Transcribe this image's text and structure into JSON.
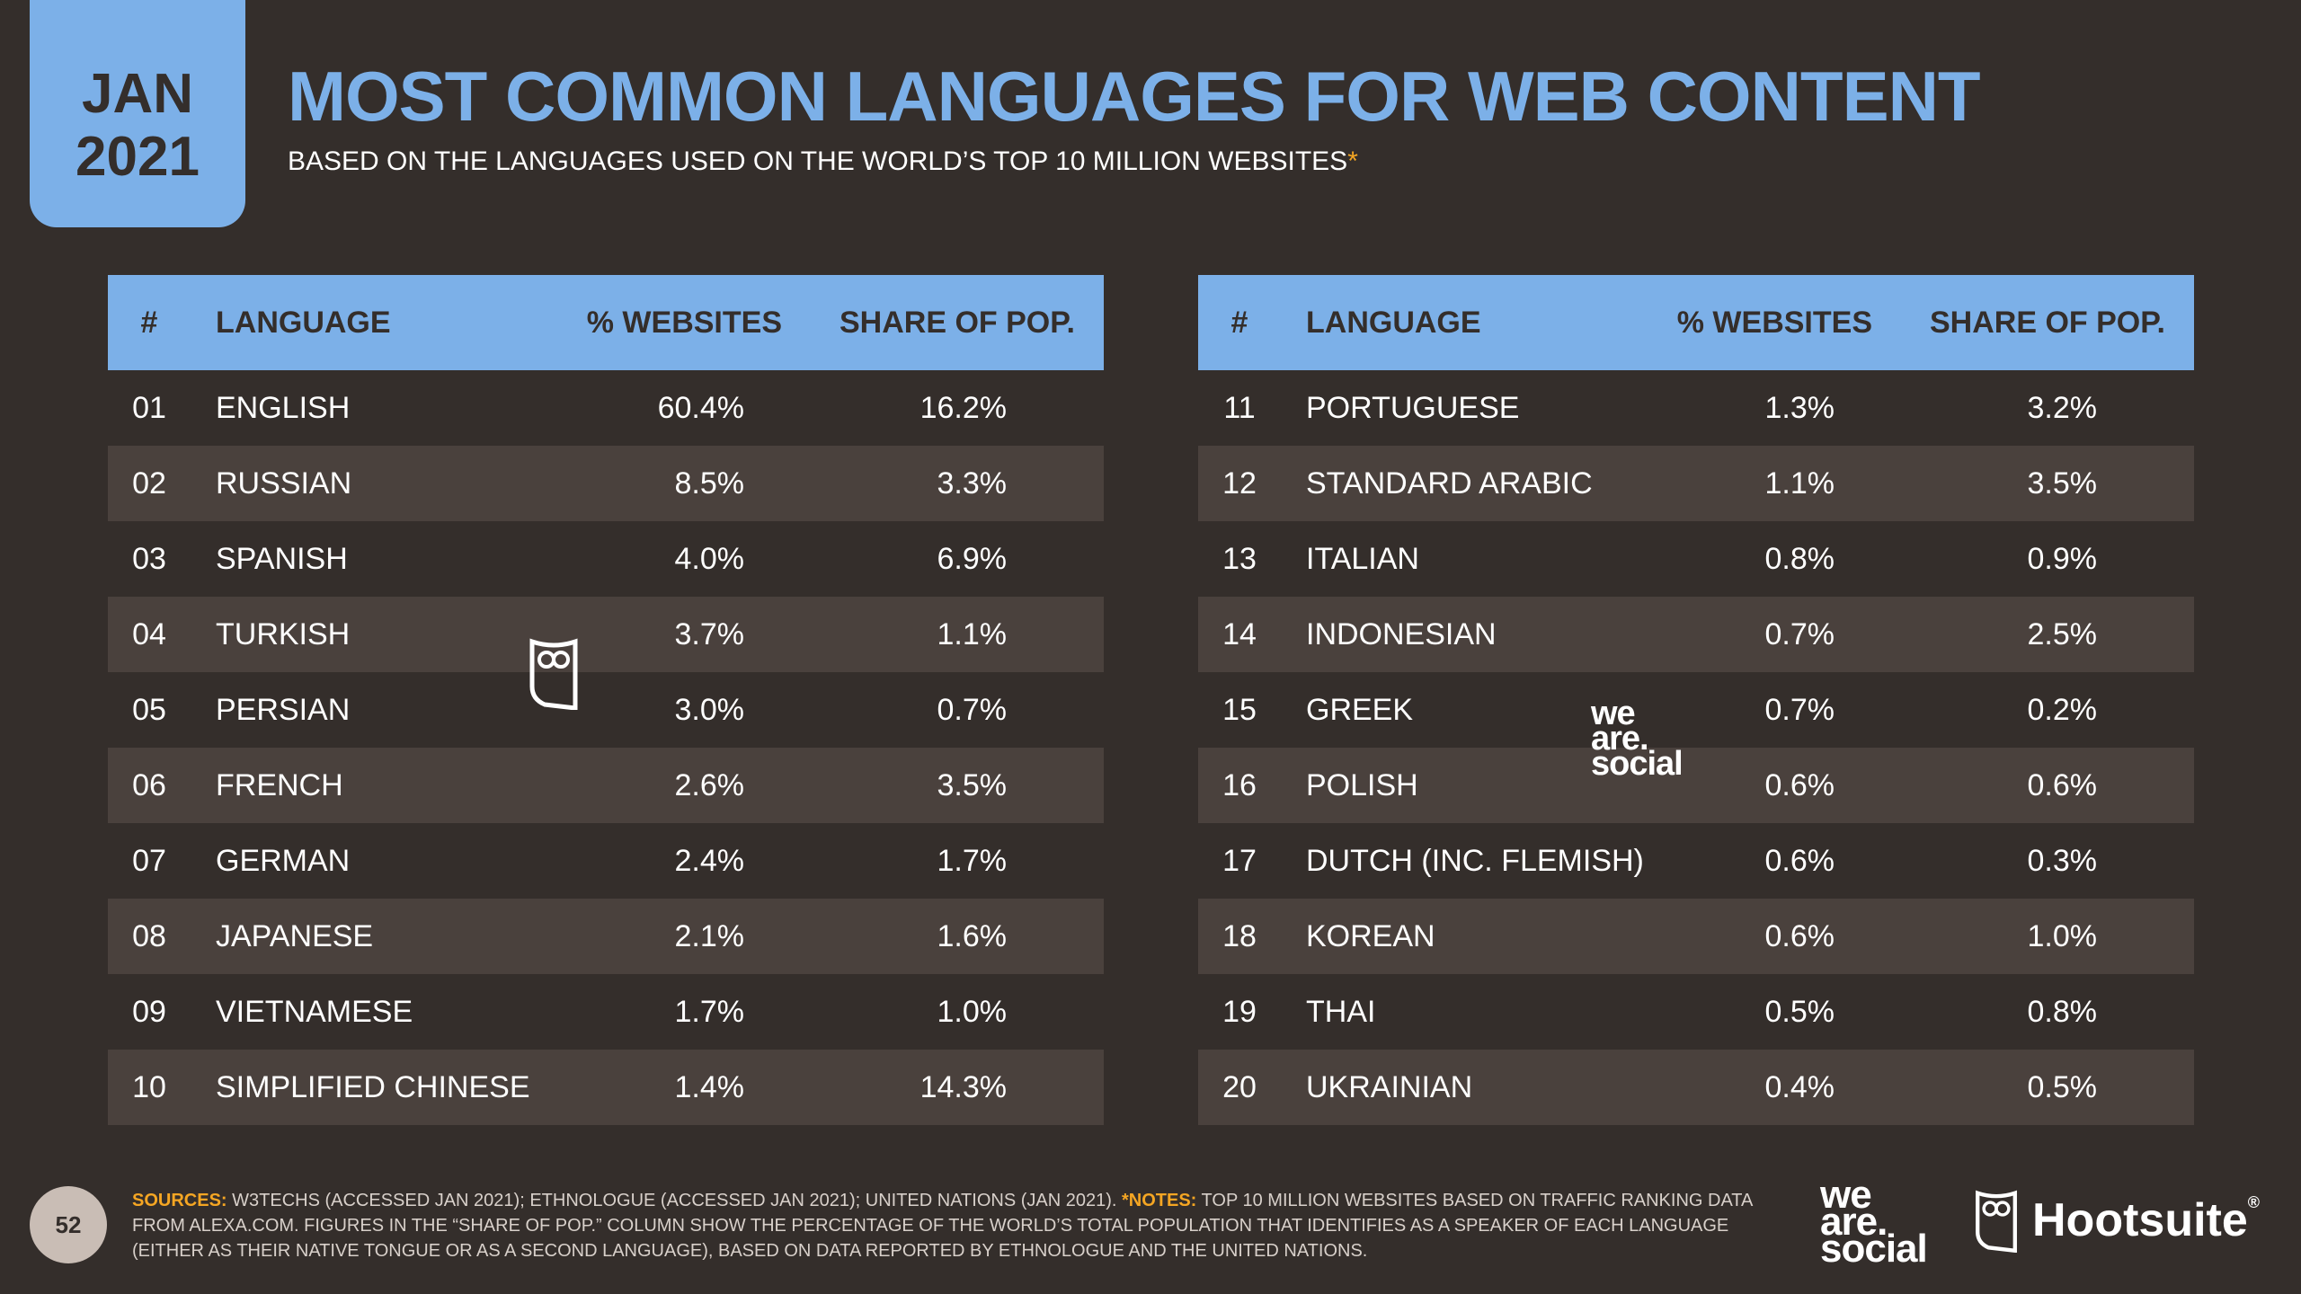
{
  "badge": {
    "month": "JAN",
    "year": "2021"
  },
  "title": "MOST COMMON LANGUAGES FOR WEB CONTENT",
  "subtitle": "BASED ON THE LANGUAGES USED ON THE WORLD’S TOP 10 MILLION WEBSITES",
  "subtitle_star": "*",
  "headers": {
    "num": "#",
    "language": "LANGUAGE",
    "websites": "% WEBSITES",
    "share": "SHARE OF POP."
  },
  "left_rows": [
    {
      "num": "01",
      "language": "ENGLISH",
      "websites": "60.4%",
      "share": "16.2%"
    },
    {
      "num": "02",
      "language": "RUSSIAN",
      "websites": "8.5%",
      "share": "3.3%"
    },
    {
      "num": "03",
      "language": "SPANISH",
      "websites": "4.0%",
      "share": "6.9%"
    },
    {
      "num": "04",
      "language": "TURKISH",
      "websites": "3.7%",
      "share": "1.1%"
    },
    {
      "num": "05",
      "language": "PERSIAN",
      "websites": "3.0%",
      "share": "0.7%"
    },
    {
      "num": "06",
      "language": "FRENCH",
      "websites": "2.6%",
      "share": "3.5%"
    },
    {
      "num": "07",
      "language": "GERMAN",
      "websites": "2.4%",
      "share": "1.7%"
    },
    {
      "num": "08",
      "language": "JAPANESE",
      "websites": "2.1%",
      "share": "1.6%"
    },
    {
      "num": "09",
      "language": "VIETNAMESE",
      "websites": "1.7%",
      "share": "1.0%"
    },
    {
      "num": "10",
      "language": "SIMPLIFIED CHINESE",
      "websites": "1.4%",
      "share": "14.3%"
    }
  ],
  "right_rows": [
    {
      "num": "11",
      "language": "PORTUGUESE",
      "websites": "1.3%",
      "share": "3.2%"
    },
    {
      "num": "12",
      "language": "STANDARD ARABIC",
      "websites": "1.1%",
      "share": "3.5%"
    },
    {
      "num": "13",
      "language": "ITALIAN",
      "websites": "0.8%",
      "share": "0.9%"
    },
    {
      "num": "14",
      "language": "INDONESIAN",
      "websites": "0.7%",
      "share": "2.5%"
    },
    {
      "num": "15",
      "language": "GREEK",
      "websites": "0.7%",
      "share": "0.2%"
    },
    {
      "num": "16",
      "language": "POLISH",
      "websites": "0.6%",
      "share": "0.6%"
    },
    {
      "num": "17",
      "language": "DUTCH (INC. FLEMISH)",
      "websites": "0.6%",
      "share": "0.3%"
    },
    {
      "num": "18",
      "language": "KOREAN",
      "websites": "0.6%",
      "share": "1.0%"
    },
    {
      "num": "19",
      "language": "THAI",
      "websites": "0.5%",
      "share": "0.8%"
    },
    {
      "num": "20",
      "language": "UKRAINIAN",
      "websites": "0.4%",
      "share": "0.5%"
    }
  ],
  "watermark": {
    "line1": "we",
    "line2": "are.",
    "line3": "social"
  },
  "page_number": "52",
  "footnote": {
    "sources_label": "SOURCES:",
    "sources_text": " W3TECHS (ACCESSED JAN 2021); ETHNOLOGUE (ACCESSED JAN 2021); UNITED NATIONS (JAN 2021). ",
    "notes_label": "*NOTES:",
    "notes_text": " TOP 10 MILLION WEBSITES BASED ON TRAFFIC RANKING DATA FROM ALEXA.COM. FIGURES IN THE “SHARE OF POP.” COLUMN SHOW THE PERCENTAGE OF THE WORLD’S TOTAL POPULATION THAT IDENTIFIES AS A SPEAKER OF EACH LANGUAGE (EITHER AS THEIR NATIVE TONGUE OR AS A SECOND LANGUAGE), BASED ON DATA REPORTED BY ETHNOLOGUE AND THE UNITED NATIONS."
  },
  "logos": {
    "was_1": "we",
    "was_2": "are.",
    "was_3": "social",
    "hootsuite": "Hootsuite",
    "reg": "®"
  },
  "colors": {
    "background": "#342e2b",
    "accent": "#7cb0e8",
    "highlight": "#f5a623",
    "alt_row": "#4a413d"
  }
}
